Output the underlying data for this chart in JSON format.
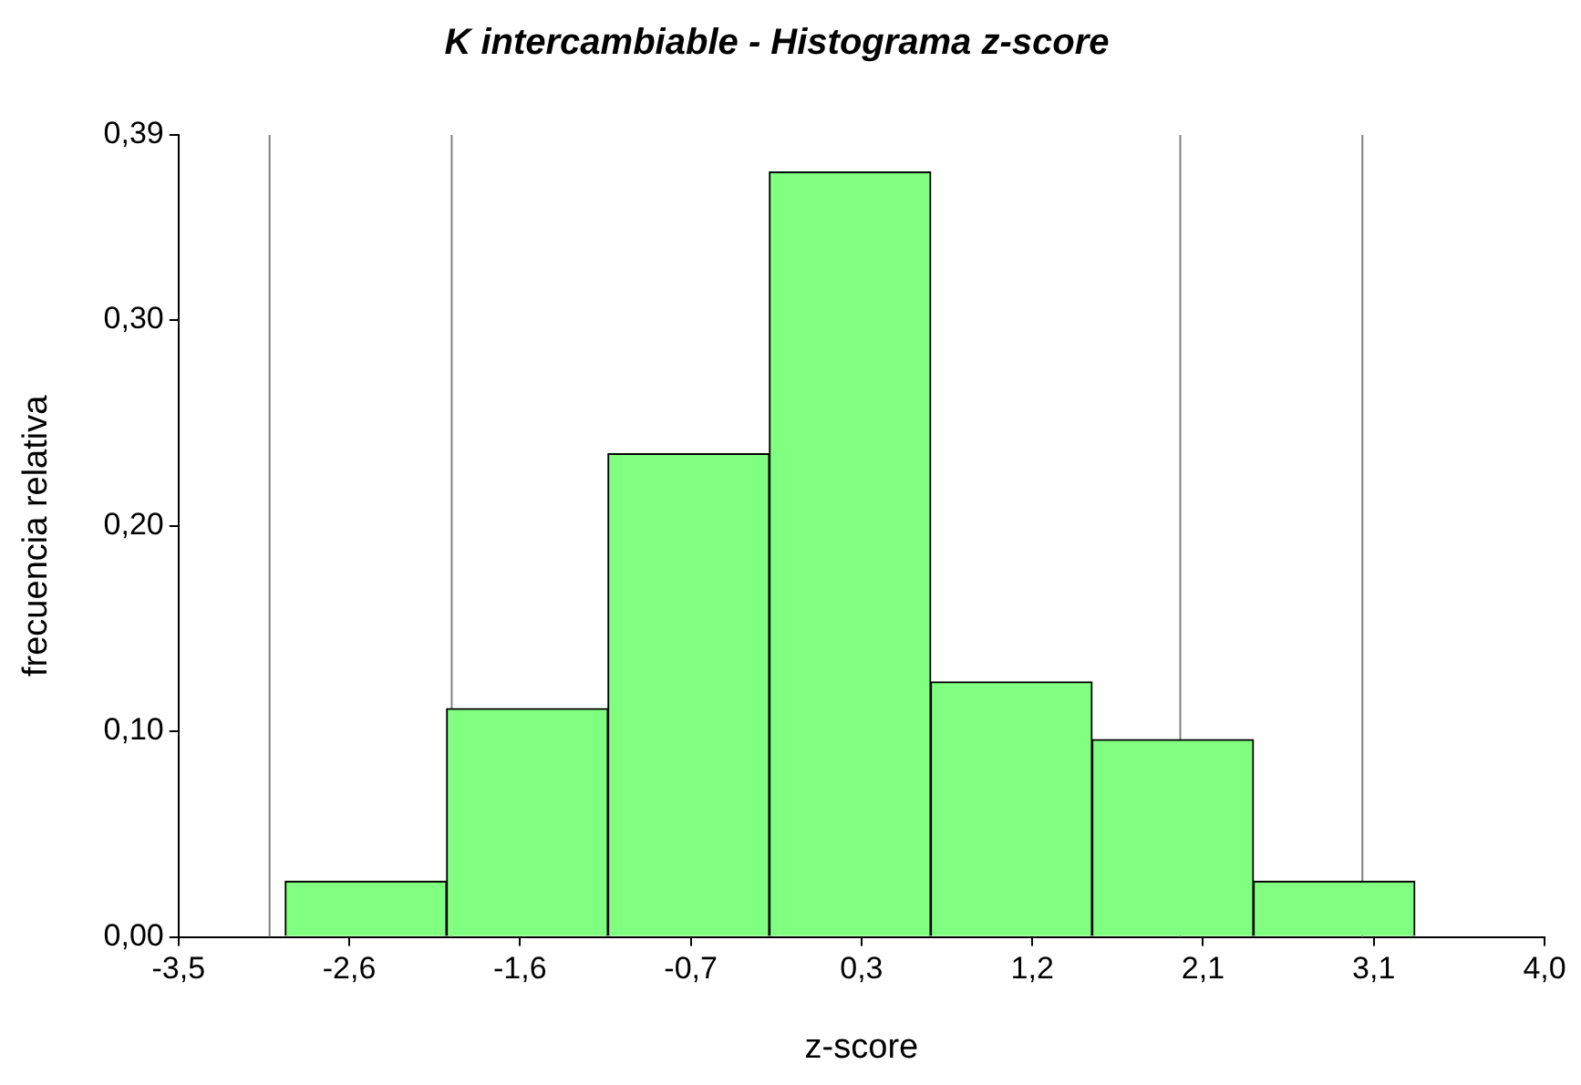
{
  "chart_data": {
    "type": "histogram",
    "title": "K intercambiable - Histograma z-score",
    "xlabel": "z-score",
    "ylabel": "frecuencia relativa",
    "bins": [
      -2.914,
      -2.028,
      -1.142,
      -0.256,
      0.63,
      1.516,
      2.402,
      3.288
    ],
    "values": [
      0.027,
      0.111,
      0.235,
      0.372,
      0.124,
      0.096,
      0.027
    ],
    "color": "#80ff80",
    "xlim": [
      -3.5,
      4.0
    ],
    "xticks": [
      {
        "value": -3.5,
        "label": "-3,5"
      },
      {
        "value": -2.5625,
        "label": "-2,6"
      },
      {
        "value": -1.625,
        "label": "-1,6"
      },
      {
        "value": -0.6875,
        "label": "-0,7"
      },
      {
        "value": 0.25,
        "label": "0,3"
      },
      {
        "value": 1.1875,
        "label": "1,2"
      },
      {
        "value": 2.125,
        "label": "2,1"
      },
      {
        "value": 3.0625,
        "label": "3,1"
      },
      {
        "value": 4.0,
        "label": "4,0"
      }
    ],
    "ylim": [
      0,
      0.39
    ],
    "yticks": [
      {
        "value": 0,
        "label": "0,00"
      },
      {
        "value": 0.1,
        "label": "0,10"
      },
      {
        "value": 0.2,
        "label": "0,20"
      },
      {
        "value": 0.3,
        "label": "0,30"
      },
      {
        "value": 0.39,
        "label": "0,39"
      }
    ],
    "ref_lines": [
      {
        "axis": "x",
        "value": -3.0,
        "color": "#808080"
      },
      {
        "axis": "x",
        "value": -2.0,
        "color": "#808080"
      },
      {
        "axis": "x",
        "value": 2.0,
        "color": "#808080"
      },
      {
        "axis": "x",
        "value": 3.0,
        "color": "#808080"
      }
    ],
    "grid": false,
    "legend": false
  }
}
